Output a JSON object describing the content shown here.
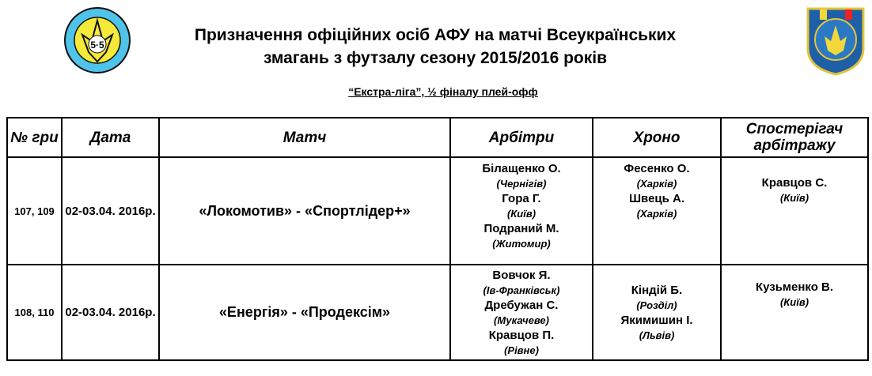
{
  "header": {
    "title_line1": "Призначення офіційних осіб АФУ на матчі Всеукраїнських",
    "title_line2": "змагань з футзалу сезону 2015/2016 років",
    "subtitle": "“Екстра-ліга”, ½ фіналу плей-офф",
    "logo_left_text": "АСОЦІАЦІЯ МІНІ-ФУТБОЛУ УКРАЇНИ 5-5",
    "logo_right_text": "КОМІТЕТ АРБІТРІВ УКРАЇНА"
  },
  "table": {
    "headers": [
      "№ гри",
      "Дата",
      "Матч",
      "Арбітри",
      "Хроно",
      "Спостерігач арбітражу"
    ],
    "rows": [
      {
        "games": "107, 109",
        "date": "02-03.04. 2016р.",
        "match": "«Локомотив» - «Спортлідер+»",
        "referees": [
          {
            "name": "Білащенко О.",
            "city": "(Чернігів)"
          },
          {
            "name": "Гора Г.",
            "city": "(Київ)"
          },
          {
            "name": "Подраний М.",
            "city": "(Житомир)"
          }
        ],
        "timekeepers": [
          {
            "name": "Фесенко О.",
            "city": "(Харків)"
          },
          {
            "name": "Швець А.",
            "city": "(Харків)"
          }
        ],
        "observer": {
          "name": "Кравцов С.",
          "city": "(Київ)"
        }
      },
      {
        "games": "108, 110",
        "date": "02-03.04. 2016р.",
        "match": "«Енергія» - «Продексім»",
        "referees": [
          {
            "name": "Вовчок Я.",
            "city": "(Ів-Франківськ)"
          },
          {
            "name": "Дребужан С.",
            "city": "(Мукачеве)"
          },
          {
            "name": "Кравцов П.",
            "city": "(Рівне)"
          }
        ],
        "timekeepers": [
          {
            "name": "Кіндій Б.",
            "city": "(Розділ)"
          },
          {
            "name": "Якимишин І.",
            "city": "(Львів)"
          }
        ],
        "observer": {
          "name": "Кузьменко В.",
          "city": "(Київ)"
        }
      }
    ]
  }
}
